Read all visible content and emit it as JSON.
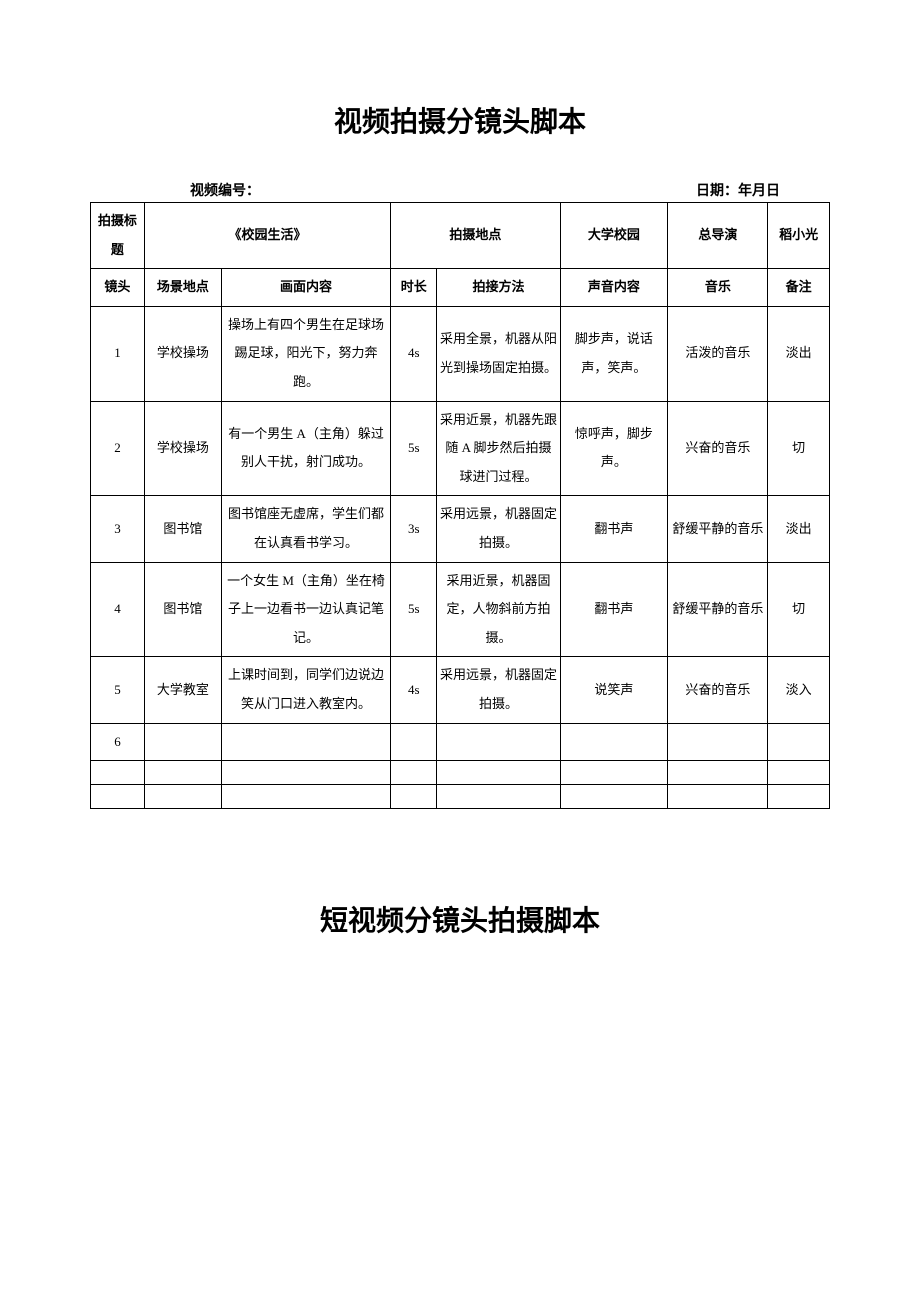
{
  "page": {
    "title1": "视频拍摄分镜头脚本",
    "title2": "短视频分镜头拍摄脚本",
    "meta_left": "视频编号：",
    "meta_right": "日期：年月日"
  },
  "header_row": {
    "c0": "拍摄标题",
    "c1": "《校园生活》",
    "c2": "拍摄地点",
    "c3": "大学校园",
    "c4": "总导演",
    "c5": "稻小光"
  },
  "columns": {
    "c0": "镜头",
    "c1": "场景地点",
    "c2": "画面内容",
    "c3": "时长",
    "c4": "拍接方法",
    "c5": "声音内容",
    "c6": "音乐",
    "c7": "备注"
  },
  "rows": [
    {
      "shot": "1",
      "scene": "学校操场",
      "content": "操场上有四个男生在足球场踢足球，阳光下，努力奔跑。",
      "duration": "4s",
      "method": "采用全景，机器从阳光到操场固定拍摄。",
      "sound": "脚步声，说话声，笑声。",
      "music": "活泼的音乐",
      "note": "淡出"
    },
    {
      "shot": "2",
      "scene": "学校操场",
      "content": "有一个男生 A（主角）躲过别人干扰，射门成功。",
      "duration": "5s",
      "method": "采用近景，机器先跟随 A 脚步然后拍摄球进门过程。",
      "sound": "惊呼声，脚步声。",
      "music": "兴奋的音乐",
      "note": "切"
    },
    {
      "shot": "3",
      "scene": "图书馆",
      "content": "图书馆座无虚席，学生们都在认真看书学习。",
      "duration": "3s",
      "method": "采用远景，机器固定拍摄。",
      "sound": "翻书声",
      "music": "舒缓平静的音乐",
      "note": "淡出"
    },
    {
      "shot": "4",
      "scene": "图书馆",
      "content": "一个女生 M（主角）坐在椅子上一边看书一边认真记笔记。",
      "duration": "5s",
      "method": "采用近景，机器固定，人物斜前方拍摄。",
      "sound": "翻书声",
      "music": "舒缓平静的音乐",
      "note": "切"
    },
    {
      "shot": "5",
      "scene": "大学教室",
      "content": "上课时间到，同学们边说边笑从门口进入教室内。",
      "duration": "4s",
      "method": "采用远景，机器固定拍摄。",
      "sound": "说笑声",
      "music": "兴奋的音乐",
      "note": "淡入"
    },
    {
      "shot": "6",
      "scene": "",
      "content": "",
      "duration": "",
      "method": "",
      "sound": "",
      "music": "",
      "note": ""
    }
  ]
}
